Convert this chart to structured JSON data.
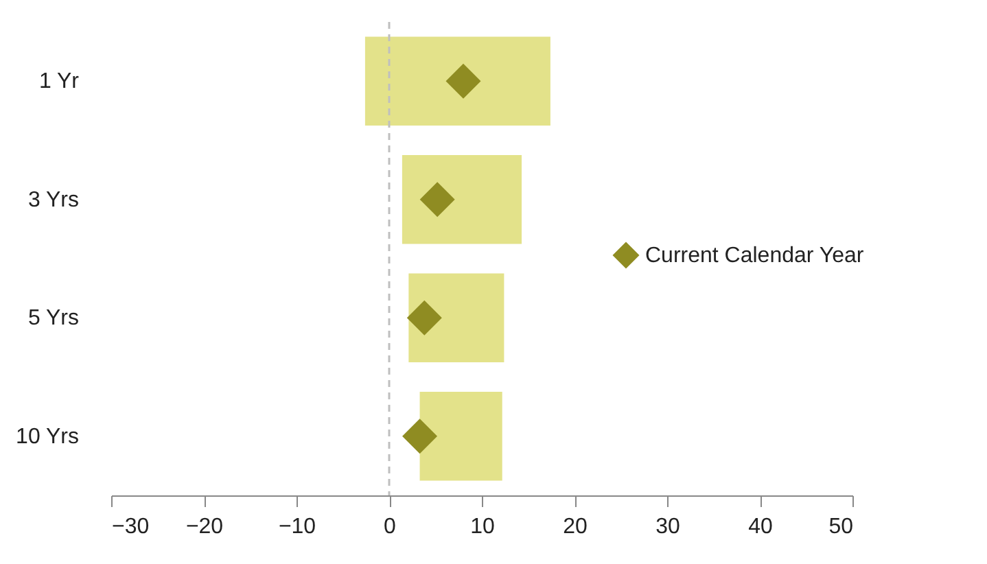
{
  "chart_data": {
    "type": "bar",
    "orientation": "horizontal",
    "categories": [
      "1 Yr",
      "3 Yrs",
      "5 Yrs",
      "10 Yrs"
    ],
    "series": [
      {
        "color": "#e3e28a",
        "base": [
          -2.6,
          1.4,
          2.1,
          3.3
        ],
        "values": [
          20.0,
          12.9,
          10.3,
          8.9
        ]
      },
      {
        "type": "scatter",
        "name": "Current Calendar Year",
        "color": "#8f8c22",
        "marker": "diamond",
        "x": [
          "1 Yr",
          "3 Yrs",
          "5 Yrs",
          "10 Yrs"
        ],
        "values": [
          8.0,
          5.2,
          3.8,
          3.3
        ]
      }
    ],
    "xlim": [
      -30,
      50
    ],
    "xticks": [
      -30,
      -20,
      -10,
      0,
      10,
      20,
      30,
      40,
      50
    ],
    "ref_lines": [
      {
        "axis": "x",
        "value": 0,
        "color": "#bfbfbf",
        "line_style": "dashed"
      }
    ],
    "grid": false,
    "legend": "right"
  }
}
